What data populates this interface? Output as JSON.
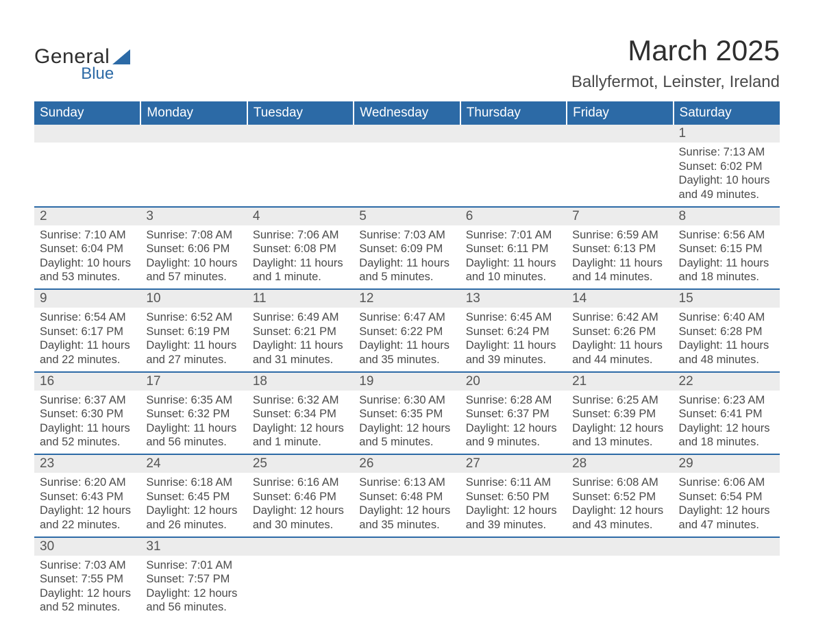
{
  "brand": {
    "word1": "General",
    "word2": "Blue",
    "color_primary": "#2c6aa6",
    "color_text": "#2e2e2e"
  },
  "title": {
    "month_year": "March 2025",
    "location": "Ballyfermot, Leinster, Ireland"
  },
  "day_headers": [
    "Sunday",
    "Monday",
    "Tuesday",
    "Wednesday",
    "Thursday",
    "Friday",
    "Saturday"
  ],
  "colors": {
    "header_bg": "#2c6aa6",
    "header_text": "#ffffff",
    "daynum_bg": "#ececec",
    "row_divider": "#2c6aa6",
    "body_text": "#4a4a4a",
    "page_bg": "#ffffff"
  },
  "weeks": [
    {
      "nums": [
        "",
        "",
        "",
        "",
        "",
        "",
        "1"
      ],
      "sunrise": [
        "",
        "",
        "",
        "",
        "",
        "",
        "Sunrise: 7:13 AM"
      ],
      "sunset": [
        "",
        "",
        "",
        "",
        "",
        "",
        "Sunset: 6:02 PM"
      ],
      "day1": [
        "",
        "",
        "",
        "",
        "",
        "",
        "Daylight: 10 hours"
      ],
      "day2": [
        "",
        "",
        "",
        "",
        "",
        "",
        "and 49 minutes."
      ]
    },
    {
      "nums": [
        "2",
        "3",
        "4",
        "5",
        "6",
        "7",
        "8"
      ],
      "sunrise": [
        "Sunrise: 7:10 AM",
        "Sunrise: 7:08 AM",
        "Sunrise: 7:06 AM",
        "Sunrise: 7:03 AM",
        "Sunrise: 7:01 AM",
        "Sunrise: 6:59 AM",
        "Sunrise: 6:56 AM"
      ],
      "sunset": [
        "Sunset: 6:04 PM",
        "Sunset: 6:06 PM",
        "Sunset: 6:08 PM",
        "Sunset: 6:09 PM",
        "Sunset: 6:11 PM",
        "Sunset: 6:13 PM",
        "Sunset: 6:15 PM"
      ],
      "day1": [
        "Daylight: 10 hours",
        "Daylight: 10 hours",
        "Daylight: 11 hours",
        "Daylight: 11 hours",
        "Daylight: 11 hours",
        "Daylight: 11 hours",
        "Daylight: 11 hours"
      ],
      "day2": [
        "and 53 minutes.",
        "and 57 minutes.",
        "and 1 minute.",
        "and 5 minutes.",
        "and 10 minutes.",
        "and 14 minutes.",
        "and 18 minutes."
      ]
    },
    {
      "nums": [
        "9",
        "10",
        "11",
        "12",
        "13",
        "14",
        "15"
      ],
      "sunrise": [
        "Sunrise: 6:54 AM",
        "Sunrise: 6:52 AM",
        "Sunrise: 6:49 AM",
        "Sunrise: 6:47 AM",
        "Sunrise: 6:45 AM",
        "Sunrise: 6:42 AM",
        "Sunrise: 6:40 AM"
      ],
      "sunset": [
        "Sunset: 6:17 PM",
        "Sunset: 6:19 PM",
        "Sunset: 6:21 PM",
        "Sunset: 6:22 PM",
        "Sunset: 6:24 PM",
        "Sunset: 6:26 PM",
        "Sunset: 6:28 PM"
      ],
      "day1": [
        "Daylight: 11 hours",
        "Daylight: 11 hours",
        "Daylight: 11 hours",
        "Daylight: 11 hours",
        "Daylight: 11 hours",
        "Daylight: 11 hours",
        "Daylight: 11 hours"
      ],
      "day2": [
        "and 22 minutes.",
        "and 27 minutes.",
        "and 31 minutes.",
        "and 35 minutes.",
        "and 39 minutes.",
        "and 44 minutes.",
        "and 48 minutes."
      ]
    },
    {
      "nums": [
        "16",
        "17",
        "18",
        "19",
        "20",
        "21",
        "22"
      ],
      "sunrise": [
        "Sunrise: 6:37 AM",
        "Sunrise: 6:35 AM",
        "Sunrise: 6:32 AM",
        "Sunrise: 6:30 AM",
        "Sunrise: 6:28 AM",
        "Sunrise: 6:25 AM",
        "Sunrise: 6:23 AM"
      ],
      "sunset": [
        "Sunset: 6:30 PM",
        "Sunset: 6:32 PM",
        "Sunset: 6:34 PM",
        "Sunset: 6:35 PM",
        "Sunset: 6:37 PM",
        "Sunset: 6:39 PM",
        "Sunset: 6:41 PM"
      ],
      "day1": [
        "Daylight: 11 hours",
        "Daylight: 11 hours",
        "Daylight: 12 hours",
        "Daylight: 12 hours",
        "Daylight: 12 hours",
        "Daylight: 12 hours",
        "Daylight: 12 hours"
      ],
      "day2": [
        "and 52 minutes.",
        "and 56 minutes.",
        "and 1 minute.",
        "and 5 minutes.",
        "and 9 minutes.",
        "and 13 minutes.",
        "and 18 minutes."
      ]
    },
    {
      "nums": [
        "23",
        "24",
        "25",
        "26",
        "27",
        "28",
        "29"
      ],
      "sunrise": [
        "Sunrise: 6:20 AM",
        "Sunrise: 6:18 AM",
        "Sunrise: 6:16 AM",
        "Sunrise: 6:13 AM",
        "Sunrise: 6:11 AM",
        "Sunrise: 6:08 AM",
        "Sunrise: 6:06 AM"
      ],
      "sunset": [
        "Sunset: 6:43 PM",
        "Sunset: 6:45 PM",
        "Sunset: 6:46 PM",
        "Sunset: 6:48 PM",
        "Sunset: 6:50 PM",
        "Sunset: 6:52 PM",
        "Sunset: 6:54 PM"
      ],
      "day1": [
        "Daylight: 12 hours",
        "Daylight: 12 hours",
        "Daylight: 12 hours",
        "Daylight: 12 hours",
        "Daylight: 12 hours",
        "Daylight: 12 hours",
        "Daylight: 12 hours"
      ],
      "day2": [
        "and 22 minutes.",
        "and 26 minutes.",
        "and 30 minutes.",
        "and 35 minutes.",
        "and 39 minutes.",
        "and 43 minutes.",
        "and 47 minutes."
      ]
    },
    {
      "nums": [
        "30",
        "31",
        "",
        "",
        "",
        "",
        ""
      ],
      "sunrise": [
        "Sunrise: 7:03 AM",
        "Sunrise: 7:01 AM",
        "",
        "",
        "",
        "",
        ""
      ],
      "sunset": [
        "Sunset: 7:55 PM",
        "Sunset: 7:57 PM",
        "",
        "",
        "",
        "",
        ""
      ],
      "day1": [
        "Daylight: 12 hours",
        "Daylight: 12 hours",
        "",
        "",
        "",
        "",
        ""
      ],
      "day2": [
        "and 52 minutes.",
        "and 56 minutes.",
        "",
        "",
        "",
        "",
        ""
      ]
    }
  ]
}
